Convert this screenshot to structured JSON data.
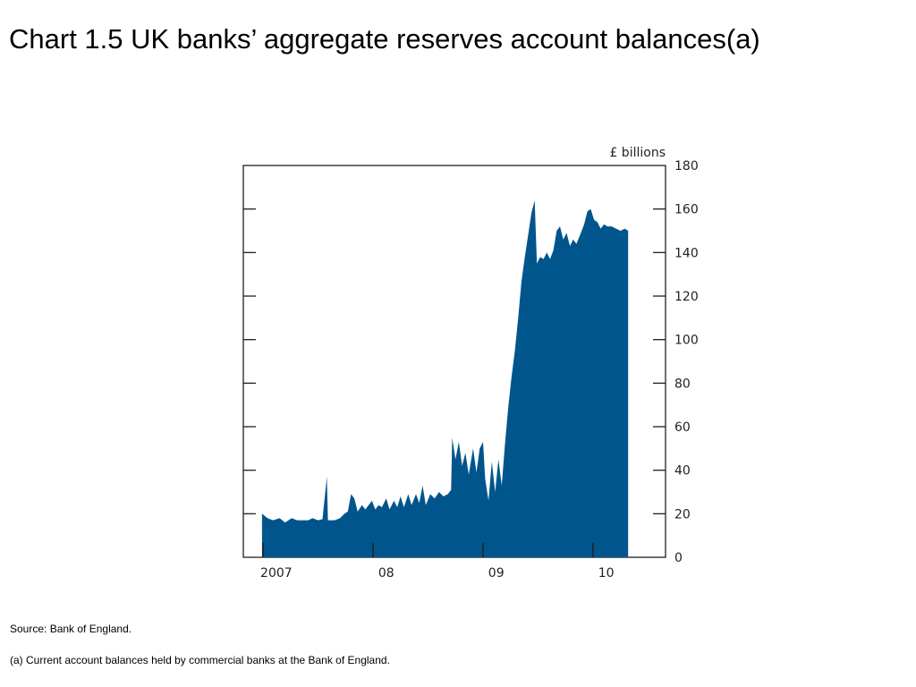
{
  "page": {
    "title": "Chart 1.5  UK banks’ aggregate reserves account balances(a)",
    "source": "Source:  Bank of England.",
    "footnote": "(a)  Current account balances held by commercial banks at the Bank of England."
  },
  "colors": {
    "series_fill": "#00558c",
    "axis": "#231f20"
  },
  "chart_data": {
    "type": "area",
    "title": "",
    "ylabel": "£ billions",
    "xlabel": "",
    "ylim": [
      0,
      180
    ],
    "yticks": [
      0,
      20,
      40,
      60,
      80,
      100,
      120,
      140,
      160,
      180
    ],
    "xlim": [
      2006.7,
      2010.54
    ],
    "x_tick_labels": [
      {
        "label": "2007",
        "x": 2007.0
      },
      {
        "label": "08",
        "x": 2008.0
      },
      {
        "label": "09",
        "x": 2009.0
      },
      {
        "label": "10",
        "x": 2010.0
      }
    ],
    "x_year_boundaries": [
      2006.88,
      2007.88,
      2008.88,
      2009.88
    ],
    "grid": false,
    "legend": "none",
    "series": [
      {
        "values": [
          [
            2006.87,
            20
          ],
          [
            2006.92,
            18
          ],
          [
            2006.97,
            17
          ],
          [
            2007.03,
            18
          ],
          [
            2007.08,
            16
          ],
          [
            2007.14,
            18
          ],
          [
            2007.19,
            17
          ],
          [
            2007.24,
            17
          ],
          [
            2007.29,
            17
          ],
          [
            2007.33,
            18
          ],
          [
            2007.38,
            17
          ],
          [
            2007.42,
            17.5
          ],
          [
            2007.46,
            37
          ],
          [
            2007.47,
            17
          ],
          [
            2007.53,
            17
          ],
          [
            2007.58,
            18
          ],
          [
            2007.62,
            20
          ],
          [
            2007.65,
            21
          ],
          [
            2007.68,
            29
          ],
          [
            2007.71,
            27
          ],
          [
            2007.74,
            21
          ],
          [
            2007.78,
            24
          ],
          [
            2007.81,
            22
          ],
          [
            2007.84,
            24
          ],
          [
            2007.87,
            26
          ],
          [
            2007.9,
            22
          ],
          [
            2007.93,
            24
          ],
          [
            2007.96,
            23
          ],
          [
            2008.0,
            27
          ],
          [
            2008.03,
            22
          ],
          [
            2008.07,
            26
          ],
          [
            2008.1,
            23
          ],
          [
            2008.13,
            28
          ],
          [
            2008.16,
            23
          ],
          [
            2008.2,
            29
          ],
          [
            2008.23,
            24
          ],
          [
            2008.27,
            29
          ],
          [
            2008.3,
            25
          ],
          [
            2008.33,
            33
          ],
          [
            2008.36,
            24
          ],
          [
            2008.4,
            29
          ],
          [
            2008.44,
            27
          ],
          [
            2008.48,
            30
          ],
          [
            2008.52,
            28
          ],
          [
            2008.56,
            29
          ],
          [
            2008.59,
            31
          ],
          [
            2008.6,
            55
          ],
          [
            2008.63,
            45
          ],
          [
            2008.66,
            53
          ],
          [
            2008.69,
            42
          ],
          [
            2008.72,
            48
          ],
          [
            2008.75,
            38
          ],
          [
            2008.79,
            50
          ],
          [
            2008.82,
            39
          ],
          [
            2008.85,
            50
          ],
          [
            2008.88,
            53
          ],
          [
            2008.9,
            36
          ],
          [
            2008.93,
            26
          ],
          [
            2008.96,
            44
          ],
          [
            2008.99,
            30
          ],
          [
            2009.02,
            45
          ],
          [
            2009.05,
            33
          ],
          [
            2009.08,
            52
          ],
          [
            2009.11,
            69
          ],
          [
            2009.14,
            83
          ],
          [
            2009.17,
            95
          ],
          [
            2009.2,
            110
          ],
          [
            2009.23,
            127
          ],
          [
            2009.26,
            138
          ],
          [
            2009.29,
            148
          ],
          [
            2009.32,
            158
          ],
          [
            2009.35,
            164
          ],
          [
            2009.37,
            135
          ],
          [
            2009.4,
            138
          ],
          [
            2009.43,
            137
          ],
          [
            2009.46,
            140
          ],
          [
            2009.49,
            137
          ],
          [
            2009.52,
            141
          ],
          [
            2009.55,
            150
          ],
          [
            2009.58,
            152
          ],
          [
            2009.61,
            146
          ],
          [
            2009.64,
            149
          ],
          [
            2009.67,
            143
          ],
          [
            2009.7,
            146
          ],
          [
            2009.73,
            144
          ],
          [
            2009.77,
            149
          ],
          [
            2009.8,
            153
          ],
          [
            2009.83,
            159
          ],
          [
            2009.86,
            160
          ],
          [
            2009.89,
            155
          ],
          [
            2009.92,
            154
          ],
          [
            2009.95,
            151
          ],
          [
            2009.98,
            153
          ],
          [
            2010.01,
            152
          ],
          [
            2010.05,
            152
          ],
          [
            2010.09,
            151
          ],
          [
            2010.13,
            150
          ],
          [
            2010.17,
            151
          ],
          [
            2010.2,
            150
          ]
        ]
      }
    ]
  }
}
